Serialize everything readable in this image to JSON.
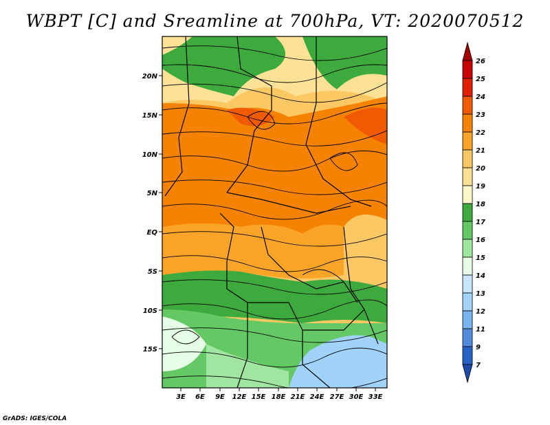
{
  "title": "WBPT [C] and Sreamline at 700hPa, VT: 2020070512",
  "footer": "GrADS: IGES/COLA",
  "lat_labels": [
    "20N",
    "15N",
    "10N",
    "5N",
    "EQ",
    "5S",
    "10S",
    "15S"
  ],
  "lon_labels": [
    "3E",
    "6E",
    "9E",
    "12E",
    "15E",
    "18E",
    "21E",
    "24E",
    "27E",
    "30E",
    "33E"
  ],
  "colorbar": {
    "labels": [
      "26",
      "25",
      "24",
      "23",
      "22",
      "21",
      "20",
      "19",
      "18",
      "17",
      "16",
      "15",
      "14",
      "13",
      "12",
      "11",
      "9",
      "7"
    ],
    "colors": [
      "#a50000",
      "#c80000",
      "#e11e00",
      "#f05a00",
      "#f58200",
      "#faa528",
      "#fbc864",
      "#fde296",
      "#fff8c8",
      "#3caa3c",
      "#64c864",
      "#a0e6a0",
      "#e6ffe6",
      "#c8e6ff",
      "#a0d2fa",
      "#78b4f0",
      "#508cdc",
      "#2864c8",
      "#1e4baa"
    ]
  }
}
